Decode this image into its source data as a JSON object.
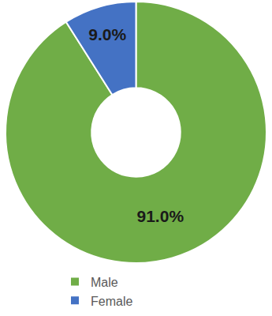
{
  "chart_data": {
    "type": "donut",
    "categories": [
      "Male",
      "Female"
    ],
    "values": [
      91.0,
      9.0
    ],
    "value_labels": [
      "91.0%",
      "9.0%"
    ],
    "colors": [
      "#70ad47",
      "#4472c4"
    ],
    "data_labels": true,
    "legend": "bottom"
  }
}
